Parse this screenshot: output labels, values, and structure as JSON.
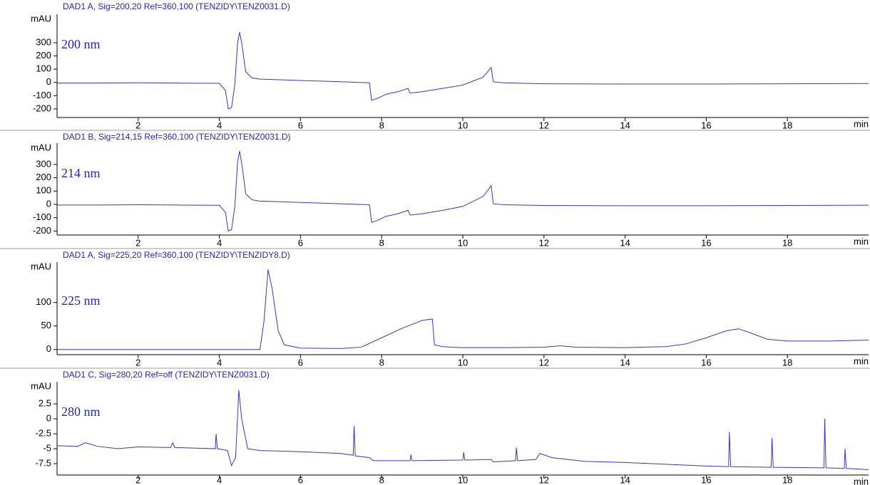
{
  "chart_data": [
    {
      "type": "line",
      "title": "DAD1 A, Sig=200,20 Ref=360,100 (TENZIDY\\TENZ0031.D)",
      "annotation": "200 nm",
      "y_label": "mAU",
      "x_label": "min",
      "x": [
        0,
        1,
        2,
        3,
        4,
        4.15,
        4.22,
        4.3,
        4.38,
        4.45,
        4.5,
        4.55,
        4.65,
        4.8,
        5,
        6,
        7,
        7.7,
        7.75,
        7.9,
        8.1,
        8.4,
        8.65,
        8.7,
        9,
        9.5,
        10,
        10.5,
        10.7,
        10.75,
        11,
        12,
        14,
        16,
        18,
        20
      ],
      "series": [
        {
          "color": "#3535d0",
          "values": [
            -5,
            -5,
            -3,
            -5,
            -7,
            -60,
            -200,
            -190,
            -20,
            300,
            380,
            300,
            80,
            35,
            25,
            15,
            5,
            -3,
            -135,
            -120,
            -90,
            -70,
            -45,
            -80,
            -70,
            -45,
            -20,
            40,
            113,
            5,
            -3,
            -10,
            -12,
            -12,
            -10,
            -8
          ]
        }
      ],
      "xlim": [
        0,
        20
      ],
      "xticks": [
        2,
        4,
        6,
        8,
        10,
        12,
        14,
        16,
        18
      ],
      "ylim": [
        -265,
        515
      ],
      "yticks": [
        -200,
        -100,
        0,
        100,
        200,
        300
      ]
    },
    {
      "type": "line",
      "title": "DAD1 B, Sig=214,15 Ref=360,100 (TENZIDY\\TENZ0031.D)",
      "annotation": "214 nm",
      "y_label": "mAU",
      "x_label": "min",
      "x": [
        0,
        1,
        2,
        3,
        4,
        4.15,
        4.22,
        4.3,
        4.38,
        4.45,
        4.5,
        4.55,
        4.65,
        4.8,
        5,
        6,
        7,
        7.7,
        7.75,
        7.9,
        8.1,
        8.4,
        8.65,
        8.7,
        9,
        9.5,
        10,
        10.5,
        10.7,
        10.75,
        11,
        12,
        14,
        16,
        18,
        20
      ],
      "series": [
        {
          "color": "#3535d0",
          "values": [
            -5,
            -5,
            -3,
            -5,
            -7,
            -60,
            -200,
            -190,
            -20,
            320,
            400,
            310,
            80,
            35,
            25,
            15,
            5,
            -3,
            -135,
            -120,
            -90,
            -70,
            -45,
            -80,
            -70,
            -45,
            -15,
            60,
            140,
            5,
            -3,
            -8,
            -10,
            -10,
            -8,
            -6
          ]
        }
      ],
      "xlim": [
        0,
        20
      ],
      "xticks": [
        2,
        4,
        6,
        8,
        10,
        12,
        14,
        16,
        18
      ],
      "ylim": [
        -230,
        460
      ],
      "yticks": [
        -200,
        -100,
        0,
        100,
        200,
        300
      ]
    },
    {
      "type": "line",
      "title": "DAD1 A, Sig=225,20 Ref=360,100 (TENZIDY\\TENZIDY8.D)",
      "annotation": "225 nm",
      "y_label": "mAU",
      "x_label": "min",
      "x": [
        0,
        4,
        5,
        5.1,
        5.2,
        5.3,
        5.45,
        5.6,
        6,
        7,
        7.5,
        8,
        8.5,
        9,
        9.25,
        9.3,
        9.5,
        10,
        11,
        12,
        12.4,
        12.8,
        14,
        15,
        15.5,
        16,
        16.5,
        16.8,
        17.1,
        17.5,
        18,
        19,
        20
      ],
      "series": [
        {
          "color": "#3535d0",
          "values": [
            0,
            0,
            0,
            60,
            170,
            130,
            40,
            10,
            3,
            2,
            5,
            25,
            45,
            62,
            65,
            10,
            6,
            4,
            4,
            5,
            8,
            5,
            4,
            6,
            12,
            25,
            40,
            44,
            35,
            22,
            18,
            18,
            20
          ]
        }
      ],
      "xlim": [
        0,
        20
      ],
      "xticks": [
        2,
        4,
        6,
        8,
        10,
        12,
        14,
        16,
        18
      ],
      "ylim": [
        -11,
        186
      ],
      "yticks": [
        0,
        50,
        100
      ]
    },
    {
      "type": "line",
      "title": "DAD1 C, Sig=280,20 Ref=off (TENZIDY\\TENZ0031.D)",
      "annotation": "280 nm",
      "y_label": "mAU",
      "x_label": "min",
      "x": [
        0,
        0.5,
        0.7,
        1,
        1.5,
        2,
        2.8,
        2.85,
        2.9,
        3.9,
        3.92,
        3.95,
        4.2,
        4.3,
        4.4,
        4.48,
        4.55,
        4.7,
        5,
        6,
        7,
        7.3,
        7.32,
        7.35,
        7.7,
        7.8,
        8.7,
        8.72,
        8.75,
        10,
        10.02,
        10.05,
        10.7,
        10.75,
        11.3,
        11.32,
        11.35,
        11.8,
        11.9,
        12.2,
        13,
        14,
        15,
        16,
        16.55,
        16.57,
        16.6,
        17.6,
        17.62,
        17.65,
        18.9,
        18.92,
        18.95,
        19.4,
        19.42,
        19.45,
        20
      ],
      "series": [
        {
          "color": "#3535d0",
          "values": [
            -4.5,
            -4.6,
            -4.0,
            -4.6,
            -5.0,
            -4.7,
            -4.8,
            -4.0,
            -4.8,
            -5.0,
            -2.5,
            -5.0,
            -5.3,
            -7.8,
            -6.5,
            4.8,
            0,
            -5,
            -5.3,
            -5.5,
            -5.8,
            -6.1,
            -1.2,
            -6.2,
            -6.5,
            -7.0,
            -7.0,
            -6.0,
            -7.0,
            -6.9,
            -5.6,
            -6.9,
            -6.8,
            -7.2,
            -7.0,
            -4.8,
            -7.0,
            -6.8,
            -5.8,
            -6.5,
            -7.1,
            -7.3,
            -7.6,
            -7.9,
            -8.0,
            -2.2,
            -8.0,
            -8.1,
            -3.2,
            -8.1,
            -8.2,
            0,
            -8.2,
            -8.3,
            -5.0,
            -8.3,
            -8.5
          ]
        }
      ],
      "xlim": [
        0,
        20
      ],
      "xticks": [
        2,
        4,
        6,
        8,
        10,
        12,
        14,
        16,
        18
      ],
      "ylim": [
        -9.4,
        6.2
      ],
      "yticks": [
        -7.5,
        -5,
        -2.5,
        0,
        2.5
      ]
    }
  ]
}
